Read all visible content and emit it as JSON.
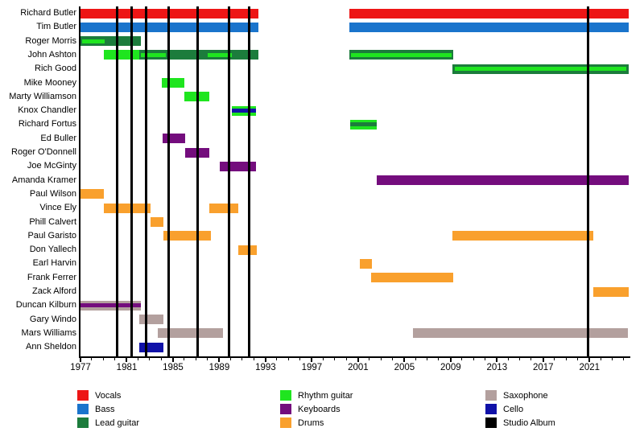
{
  "chart_data": {
    "type": "bar",
    "variant": "band-membership-timeline-gantt",
    "orientation": "horizontal",
    "title": "",
    "x_axis": {
      "min": 1977,
      "max": 2024.4,
      "major_ticks": [
        1977,
        1981,
        1985,
        1989,
        1993,
        1997,
        2001,
        2005,
        2009,
        2013,
        2017,
        2021
      ],
      "minor_tick_interval": 1,
      "grid": false
    },
    "colors": {
      "vocals": "#ed1515",
      "bass": "#1a74cc",
      "lead_guitar": "#1c7c3c",
      "rhythm_guitar": "#1fe51f",
      "keyboards": "#740d7d",
      "drums": "#f9a02d",
      "saxophone": "#b3a09e",
      "cello": "#1011a8",
      "studio_album": "#000000"
    },
    "legend": {
      "position": "bottom",
      "items": [
        {
          "label": "Vocals",
          "role": "vocals",
          "col": 0,
          "row": 0
        },
        {
          "label": "Bass",
          "role": "bass",
          "col": 0,
          "row": 1
        },
        {
          "label": "Lead guitar",
          "role": "lead_guitar",
          "col": 0,
          "row": 2
        },
        {
          "label": "Rhythm guitar",
          "role": "rhythm_guitar",
          "col": 1,
          "row": 0
        },
        {
          "label": "Keyboards",
          "role": "keyboards",
          "col": 1,
          "row": 1
        },
        {
          "label": "Drums",
          "role": "drums",
          "col": 1,
          "row": 2
        },
        {
          "label": "Saxophone",
          "role": "saxophone",
          "col": 2,
          "row": 0
        },
        {
          "label": "Cello",
          "role": "cello",
          "col": 2,
          "row": 1
        },
        {
          "label": "Studio Album",
          "role": "studio_album",
          "col": 2,
          "row": 2
        }
      ]
    },
    "albums": {
      "legend_label": "Studio Album",
      "marker": "vertical-black-line",
      "years": [
        1980.2,
        1981.45,
        1982.7,
        1984.65,
        1987.15,
        1989.85,
        1991.6,
        2020.85
      ]
    },
    "members": [
      {
        "name": "Richard Butler",
        "segments": [
          {
            "role": "vocals",
            "start": 1977.0,
            "end": 1992.35
          },
          {
            "role": "vocals",
            "start": 2000.25,
            "end": 2024.4
          }
        ]
      },
      {
        "name": "Tim Butler",
        "segments": [
          {
            "role": "bass",
            "start": 1977.0,
            "end": 1992.35
          },
          {
            "role": "bass",
            "start": 2000.25,
            "end": 2024.4
          }
        ]
      },
      {
        "name": "Roger Morris",
        "segments": [
          {
            "role": "lead_guitar",
            "start": 1977.0,
            "end": 1982.2,
            "stripes": [
              {
                "role": "rhythm_guitar",
                "start": 1977.15,
                "end": 1979.1
              }
            ]
          }
        ]
      },
      {
        "name": "John Ashton",
        "segments": [
          {
            "role": "rhythm_guitar",
            "start": 1979.0,
            "end": 1982.05
          },
          {
            "role": "lead_guitar",
            "start": 1982.05,
            "end": 1992.35,
            "stripes": [
              {
                "role": "rhythm_guitar",
                "start": 1982.25,
                "end": 1984.35
              },
              {
                "role": "rhythm_guitar",
                "start": 1988.0,
                "end": 1990.1
              }
            ]
          },
          {
            "role": "lead_guitar",
            "start": 2000.25,
            "end": 2009.2,
            "stripes": [
              {
                "role": "rhythm_guitar",
                "start": 2000.4,
                "end": 2009.05
              }
            ]
          }
        ]
      },
      {
        "name": "Rich Good",
        "segments": [
          {
            "role": "lead_guitar",
            "start": 2009.15,
            "end": 2024.4,
            "stripes": [
              {
                "role": "rhythm_guitar",
                "start": 2009.35,
                "end": 2024.2
              }
            ]
          }
        ]
      },
      {
        "name": "Mike Mooney",
        "segments": [
          {
            "role": "rhythm_guitar",
            "start": 1984.0,
            "end": 1986.0
          }
        ]
      },
      {
        "name": "Marty Williamson",
        "segments": [
          {
            "role": "rhythm_guitar",
            "start": 1986.0,
            "end": 1988.1
          }
        ]
      },
      {
        "name": "Knox Chandler",
        "segments": [
          {
            "role": "rhythm_guitar",
            "start": 1990.1,
            "end": 1992.2,
            "stripes": [
              {
                "role": "cello",
                "start": 1990.1,
                "end": 1992.2
              }
            ]
          }
        ]
      },
      {
        "name": "Richard Fortus",
        "segments": [
          {
            "role": "rhythm_guitar",
            "start": 2000.3,
            "end": 2002.6,
            "stripes": [
              {
                "role": "lead_guitar",
                "start": 2000.3,
                "end": 2002.6
              }
            ]
          }
        ]
      },
      {
        "name": "Ed Buller",
        "segments": [
          {
            "role": "keyboards",
            "start": 1984.1,
            "end": 1986.05
          }
        ]
      },
      {
        "name": "Roger O'Donnell",
        "segments": [
          {
            "role": "keyboards",
            "start": 1986.05,
            "end": 1988.1
          }
        ]
      },
      {
        "name": "Joe McGinty",
        "segments": [
          {
            "role": "keyboards",
            "start": 1989.05,
            "end": 1992.15
          }
        ]
      },
      {
        "name": "Amanda Kramer",
        "segments": [
          {
            "role": "keyboards",
            "start": 2002.6,
            "end": 2024.4
          }
        ]
      },
      {
        "name": "Paul Wilson",
        "segments": [
          {
            "role": "drums",
            "start": 1977.0,
            "end": 1979.0
          }
        ]
      },
      {
        "name": "Vince Ely",
        "segments": [
          {
            "role": "drums",
            "start": 1979.0,
            "end": 1983.05
          },
          {
            "role": "drums",
            "start": 1988.15,
            "end": 1990.65
          }
        ]
      },
      {
        "name": "Phill Calvert",
        "segments": [
          {
            "role": "drums",
            "start": 1983.05,
            "end": 1984.15
          }
        ]
      },
      {
        "name": "Paul Garisto",
        "segments": [
          {
            "role": "drums",
            "start": 1984.15,
            "end": 1988.3
          },
          {
            "role": "drums",
            "start": 2009.15,
            "end": 2021.3
          }
        ]
      },
      {
        "name": "Don Yallech",
        "segments": [
          {
            "role": "drums",
            "start": 1990.65,
            "end": 1992.25
          }
        ]
      },
      {
        "name": "Earl Harvin",
        "segments": [
          {
            "role": "drums",
            "start": 2001.15,
            "end": 2002.2
          }
        ]
      },
      {
        "name": "Frank Ferrer",
        "segments": [
          {
            "role": "drums",
            "start": 2002.15,
            "end": 2009.2
          }
        ]
      },
      {
        "name": "Zack Alford",
        "segments": [
          {
            "role": "drums",
            "start": 2021.3,
            "end": 2024.4
          }
        ]
      },
      {
        "name": "Duncan Kilburn",
        "segments": [
          {
            "role": "saxophone",
            "start": 1977.0,
            "end": 1982.2,
            "stripes": [
              {
                "role": "keyboards",
                "start": 1977.0,
                "end": 1982.2
              }
            ]
          }
        ]
      },
      {
        "name": "Gary Windo",
        "segments": [
          {
            "role": "saxophone",
            "start": 1982.05,
            "end": 1984.15
          }
        ]
      },
      {
        "name": "Mars Williams",
        "segments": [
          {
            "role": "saxophone",
            "start": 1983.7,
            "end": 1989.3
          },
          {
            "role": "saxophone",
            "start": 2005.75,
            "end": 2024.3
          }
        ]
      },
      {
        "name": "Ann Sheldon",
        "segments": [
          {
            "role": "cello",
            "start": 1982.05,
            "end": 1984.15
          }
        ]
      }
    ]
  }
}
